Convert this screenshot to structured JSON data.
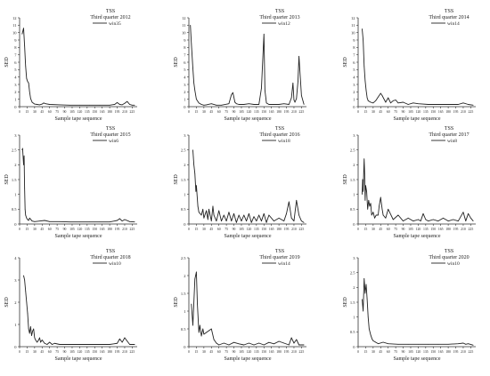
{
  "chart_data": [
    {
      "type": "line",
      "title": "TSS",
      "subtitle": "Third quarter 2012",
      "legend": "win35",
      "legend_position": "top-right",
      "xlabel": "Sample tape sequence",
      "ylabel": "SED",
      "ylim": [
        0,
        12
      ],
      "yticks": [
        0,
        1,
        2,
        3,
        4,
        5,
        6,
        7,
        8,
        9,
        10,
        11,
        12
      ],
      "xlim": [
        0,
        235
      ],
      "xticks": [
        0,
        15,
        30,
        45,
        60,
        75,
        90,
        105,
        120,
        135,
        150,
        165,
        180,
        195,
        210,
        225
      ],
      "x": [
        5,
        8,
        10,
        12,
        14,
        16,
        18,
        20,
        22,
        25,
        30,
        35,
        40,
        45,
        48,
        52,
        60,
        80,
        100,
        120,
        140,
        160,
        180,
        190,
        195,
        200,
        205,
        210,
        215,
        220,
        225,
        230
      ],
      "y": [
        9.8,
        10.6,
        8.2,
        5.5,
        3.8,
        3.4,
        3.2,
        2.0,
        1.1,
        0.6,
        0.35,
        0.3,
        0.25,
        0.35,
        0.5,
        0.4,
        0.3,
        0.25,
        0.2,
        0.2,
        0.2,
        0.2,
        0.2,
        0.3,
        0.55,
        0.3,
        0.25,
        0.45,
        0.7,
        0.3,
        0.2,
        0.2
      ]
    },
    {
      "type": "line",
      "title": "TSS",
      "subtitle": "Third quarter 2013",
      "legend": "win12",
      "legend_position": "top-right",
      "xlabel": "Sample tape sequence",
      "ylabel": "SED",
      "ylim": [
        0,
        12
      ],
      "yticks": [
        0,
        1,
        2,
        3,
        4,
        5,
        6,
        7,
        8,
        9,
        10,
        11,
        12
      ],
      "xlim": [
        0,
        235
      ],
      "xticks": [
        0,
        15,
        30,
        45,
        60,
        75,
        90,
        105,
        120,
        135,
        150,
        165,
        180,
        195,
        210,
        225
      ],
      "x": [
        3,
        5,
        8,
        10,
        12,
        15,
        20,
        25,
        30,
        35,
        45,
        55,
        65,
        80,
        85,
        88,
        92,
        95,
        100,
        110,
        120,
        130,
        140,
        145,
        150,
        152,
        155,
        160,
        170,
        180,
        190,
        200,
        205,
        208,
        210,
        212,
        215,
        218,
        220,
        225,
        230
      ],
      "y": [
        11.0,
        8.5,
        5.2,
        3.2,
        2.2,
        1.0,
        0.5,
        0.3,
        0.2,
        0.25,
        0.4,
        0.2,
        0.2,
        0.4,
        1.6,
        1.9,
        0.6,
        0.4,
        0.3,
        0.3,
        0.4,
        0.3,
        0.3,
        2.5,
        9.8,
        2.2,
        0.5,
        0.3,
        0.3,
        0.3,
        0.4,
        0.3,
        1.2,
        3.2,
        0.9,
        0.6,
        1.1,
        3.4,
        6.8,
        1.5,
        0.3
      ]
    },
    {
      "type": "line",
      "title": "TSS",
      "subtitle": "Third quarter 2014",
      "legend": "win14",
      "legend_position": "top-right",
      "xlabel": "Sample tape sequence",
      "ylabel": "SED",
      "ylim": [
        0,
        12
      ],
      "yticks": [
        0,
        1,
        2,
        3,
        4,
        5,
        6,
        7,
        8,
        9,
        10,
        11,
        12
      ],
      "xlim": [
        0,
        235
      ],
      "xticks": [
        0,
        15,
        30,
        45,
        60,
        75,
        90,
        105,
        120,
        135,
        150,
        165,
        180,
        195,
        210,
        225
      ],
      "x": [
        8,
        10,
        12,
        14,
        16,
        18,
        20,
        25,
        30,
        35,
        40,
        45,
        48,
        55,
        60,
        65,
        70,
        75,
        80,
        90,
        100,
        110,
        120,
        140,
        160,
        180,
        200,
        210,
        220,
        230
      ],
      "y": [
        10.5,
        9.0,
        5.5,
        3.5,
        2.2,
        1.2,
        0.8,
        0.6,
        0.5,
        0.8,
        1.3,
        1.8,
        1.5,
        0.6,
        1.2,
        0.5,
        0.8,
        0.9,
        0.5,
        0.6,
        0.3,
        0.5,
        0.4,
        0.3,
        0.3,
        0.3,
        0.3,
        0.5,
        0.3,
        0.2
      ]
    },
    {
      "type": "line",
      "title": "TSS",
      "subtitle": "Third quarter 2015",
      "legend": "win6",
      "legend_position": "top-right",
      "xlabel": "Sample tape sequence",
      "ylabel": "SED",
      "ylim": [
        0,
        3
      ],
      "yticks": [
        0,
        0.5,
        1,
        1.5,
        2,
        2.5,
        3
      ],
      "xlim": [
        0,
        235
      ],
      "xticks": [
        0,
        15,
        30,
        45,
        60,
        75,
        90,
        105,
        120,
        135,
        150,
        165,
        180,
        195,
        210,
        225
      ],
      "x": [
        5,
        6,
        8,
        9,
        10,
        11,
        12,
        14,
        16,
        18,
        20,
        25,
        30,
        40,
        50,
        60,
        80,
        100,
        120,
        140,
        160,
        180,
        195,
        200,
        205,
        210,
        220,
        230
      ],
      "y": [
        2.5,
        2.55,
        2.0,
        2.3,
        1.2,
        0.5,
        0.3,
        0.2,
        0.15,
        0.12,
        0.2,
        0.1,
        0.08,
        0.1,
        0.12,
        0.08,
        0.08,
        0.07,
        0.07,
        0.07,
        0.07,
        0.07,
        0.12,
        0.18,
        0.1,
        0.15,
        0.08,
        0.07
      ]
    },
    {
      "type": "line",
      "title": "TSS",
      "subtitle": "Third quarter 2016",
      "legend": "win18",
      "legend_position": "top-right",
      "xlabel": "Sample tape sequence",
      "ylabel": "SED",
      "ylim": [
        0,
        3
      ],
      "yticks": [
        0,
        0.5,
        1,
        1.5,
        2,
        2.5,
        3
      ],
      "xlim": [
        0,
        235
      ],
      "xticks": [
        0,
        15,
        30,
        45,
        60,
        75,
        90,
        105,
        120,
        135,
        150,
        165,
        180,
        195,
        210,
        225
      ],
      "x": [
        8,
        10,
        12,
        14,
        15,
        18,
        20,
        25,
        28,
        30,
        35,
        38,
        40,
        45,
        48,
        50,
        55,
        60,
        65,
        70,
        75,
        80,
        85,
        90,
        95,
        100,
        105,
        110,
        115,
        120,
        125,
        130,
        135,
        140,
        145,
        150,
        155,
        160,
        170,
        180,
        190,
        195,
        200,
        205,
        210,
        215,
        220,
        225,
        230
      ],
      "y": [
        2.5,
        2.0,
        1.7,
        1.1,
        1.3,
        0.6,
        0.4,
        0.3,
        0.5,
        0.2,
        0.45,
        0.15,
        0.5,
        0.1,
        0.6,
        0.3,
        0.1,
        0.45,
        0.1,
        0.3,
        0.1,
        0.4,
        0.1,
        0.35,
        0.05,
        0.3,
        0.1,
        0.3,
        0.1,
        0.35,
        0.05,
        0.25,
        0.1,
        0.3,
        0.1,
        0.35,
        0.05,
        0.3,
        0.1,
        0.2,
        0.1,
        0.35,
        0.75,
        0.2,
        0.1,
        0.8,
        0.3,
        0.1,
        0.05
      ]
    },
    {
      "type": "line",
      "title": "TSS",
      "subtitle": "Third quarter 2017",
      "legend": "win8",
      "legend_position": "top-right",
      "xlabel": "Sample tape sequence",
      "ylabel": "SED",
      "ylim": [
        0,
        3
      ],
      "yticks": [
        0,
        0.5,
        1,
        1.5,
        2,
        2.5,
        3
      ],
      "xlim": [
        0,
        235
      ],
      "xticks": [
        0,
        15,
        30,
        45,
        60,
        75,
        90,
        105,
        120,
        135,
        150,
        165,
        180,
        195,
        210,
        225
      ],
      "x": [
        8,
        9,
        10,
        12,
        13,
        14,
        15,
        17,
        19,
        21,
        23,
        25,
        27,
        30,
        33,
        36,
        40,
        42,
        45,
        48,
        50,
        55,
        60,
        70,
        80,
        90,
        100,
        110,
        120,
        125,
        130,
        135,
        140,
        150,
        160,
        170,
        180,
        190,
        200,
        205,
        210,
        215,
        220,
        225,
        230
      ],
      "y": [
        1.0,
        1.5,
        1.1,
        2.2,
        1.7,
        0.8,
        1.3,
        1.1,
        0.5,
        0.8,
        0.6,
        0.7,
        0.3,
        0.4,
        0.2,
        0.3,
        0.3,
        0.6,
        0.9,
        0.5,
        0.3,
        0.2,
        0.5,
        0.15,
        0.3,
        0.1,
        0.2,
        0.1,
        0.15,
        0.1,
        0.35,
        0.15,
        0.1,
        0.15,
        0.1,
        0.2,
        0.1,
        0.15,
        0.1,
        0.25,
        0.4,
        0.1,
        0.35,
        0.2,
        0.1
      ]
    },
    {
      "type": "line",
      "title": "TSS",
      "subtitle": "Third quarter 2018",
      "legend": "win10",
      "legend_position": "top-right",
      "xlabel": "Sample tape sequence",
      "ylabel": "SED",
      "ylim": [
        0,
        4
      ],
      "yticks": [
        0,
        1,
        2,
        3,
        4
      ],
      "xlim": [
        0,
        235
      ],
      "xticks": [
        0,
        15,
        30,
        45,
        60,
        75,
        90,
        105,
        120,
        135,
        150,
        165,
        180,
        195,
        210,
        225
      ],
      "x": [
        8,
        10,
        12,
        14,
        16,
        18,
        20,
        22,
        24,
        26,
        28,
        30,
        32,
        35,
        38,
        40,
        42,
        45,
        50,
        55,
        60,
        65,
        70,
        80,
        90,
        100,
        120,
        140,
        160,
        180,
        195,
        200,
        205,
        210,
        215,
        220,
        230
      ],
      "y": [
        3.2,
        3.0,
        2.5,
        2.0,
        1.5,
        0.8,
        0.6,
        0.9,
        0.5,
        0.7,
        0.8,
        0.4,
        0.3,
        0.2,
        0.3,
        0.4,
        0.2,
        0.3,
        0.15,
        0.1,
        0.2,
        0.1,
        0.15,
        0.1,
        0.1,
        0.1,
        0.1,
        0.1,
        0.1,
        0.1,
        0.15,
        0.35,
        0.2,
        0.4,
        0.25,
        0.1,
        0.1
      ]
    },
    {
      "type": "line",
      "title": "TSS",
      "subtitle": "Third quarter 2019",
      "legend": "win14",
      "legend_position": "top-right",
      "xlabel": "Sample tape sequence",
      "ylabel": "SED",
      "ylim": [
        0,
        2.5
      ],
      "yticks": [
        0,
        0.5,
        1,
        1.5,
        2,
        2.5
      ],
      "xlim": [
        0,
        235
      ],
      "xticks": [
        0,
        15,
        30,
        45,
        60,
        75,
        90,
        105,
        120,
        135,
        150,
        165,
        180,
        195,
        210,
        225
      ],
      "x": [
        5,
        8,
        12,
        15,
        17,
        20,
        22,
        25,
        28,
        30,
        35,
        40,
        45,
        50,
        55,
        60,
        70,
        80,
        90,
        100,
        110,
        120,
        130,
        140,
        150,
        160,
        170,
        180,
        190,
        200,
        205,
        210,
        215,
        220,
        230
      ],
      "y": [
        1.2,
        0.6,
        1.9,
        2.1,
        1.2,
        0.4,
        0.6,
        0.3,
        0.5,
        0.35,
        0.4,
        0.45,
        0.5,
        0.2,
        0.1,
        0.05,
        0.1,
        0.05,
        0.12,
        0.08,
        0.05,
        0.1,
        0.05,
        0.1,
        0.05,
        0.12,
        0.08,
        0.15,
        0.1,
        0.05,
        0.25,
        0.1,
        0.2,
        0.05,
        0.05
      ]
    },
    {
      "type": "line",
      "title": "TSS",
      "subtitle": "Third quarter 2020",
      "legend": "win10",
      "legend_position": "top-right",
      "xlabel": "Sample tape sequence",
      "ylabel": "SED",
      "ylim": [
        0,
        3
      ],
      "yticks": [
        0,
        0.5,
        1,
        1.5,
        2,
        2.5,
        3
      ],
      "xlim": [
        0,
        235
      ],
      "xticks": [
        0,
        15,
        30,
        45,
        60,
        75,
        90,
        105,
        120,
        135,
        150,
        165,
        180,
        195,
        210,
        225
      ],
      "x": [
        8,
        10,
        12,
        14,
        16,
        18,
        20,
        22,
        25,
        28,
        30,
        35,
        40,
        50,
        60,
        80,
        100,
        120,
        140,
        160,
        180,
        200,
        210,
        215,
        220,
        230
      ],
      "y": [
        1.6,
        1.2,
        2.3,
        1.8,
        2.1,
        1.6,
        1.0,
        0.6,
        0.4,
        0.25,
        0.2,
        0.15,
        0.1,
        0.15,
        0.1,
        0.08,
        0.08,
        0.08,
        0.08,
        0.08,
        0.08,
        0.1,
        0.12,
        0.08,
        0.1,
        0.05
      ]
    }
  ]
}
